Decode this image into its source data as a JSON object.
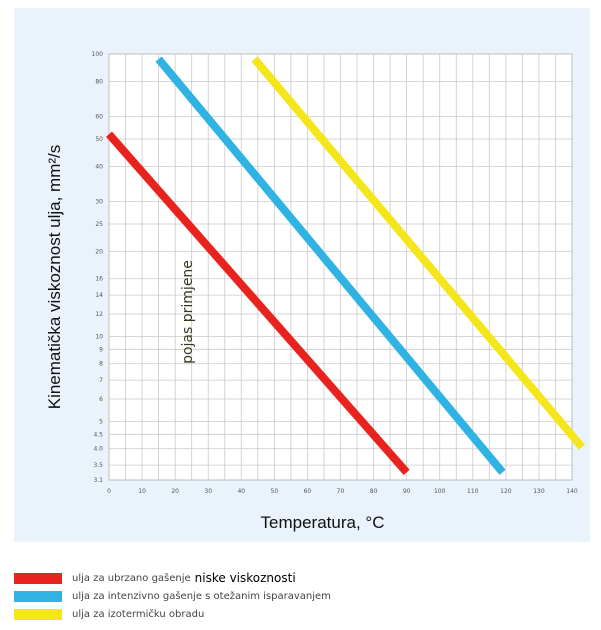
{
  "chart_data": {
    "type": "line",
    "xlabel": "Temperatura, °C",
    "ylabel": "Kinematička viskoznost ulja, mm²/s",
    "y_scale": "log",
    "xlim": [
      0,
      140
    ],
    "ylim": [
      3.1,
      100
    ],
    "x_ticks": [
      "0",
      "10",
      "20",
      "30",
      "40",
      "50",
      "60",
      "70",
      "80",
      "90",
      "100",
      "110",
      "120",
      "130",
      "140"
    ],
    "y_ticks": [
      "3.1",
      "3.5",
      "4.0",
      "4.5",
      "5",
      "6",
      "7",
      "8",
      "9",
      "10",
      "12",
      "14",
      "16",
      "20",
      "25",
      "30",
      "40",
      "50",
      "60",
      "80",
      "100"
    ],
    "annotation": "pojas primjene",
    "grid": true,
    "series": [
      {
        "color": "#e8231d",
        "x": [
          0,
          90
        ],
        "y": [
          52,
          3.3
        ]
      },
      {
        "color": "#2fb3e2",
        "x": [
          15,
          119
        ],
        "y": [
          96,
          3.3
        ]
      },
      {
        "color": "#f5e61c",
        "x": [
          44,
          143
        ],
        "y": [
          96,
          4.05
        ]
      }
    ]
  },
  "legend": [
    {
      "color": "#e8231d",
      "text": "ulja za ubrzano gašenje",
      "strong": "niske viskoznosti"
    },
    {
      "color": "#2fb3e2",
      "text": "ulja za intenzivno gašenje s otežanim isparavanjem",
      "strong": ""
    },
    {
      "color": "#f5e61c",
      "text": "ulja za izotermičku obradu",
      "strong": ""
    }
  ]
}
